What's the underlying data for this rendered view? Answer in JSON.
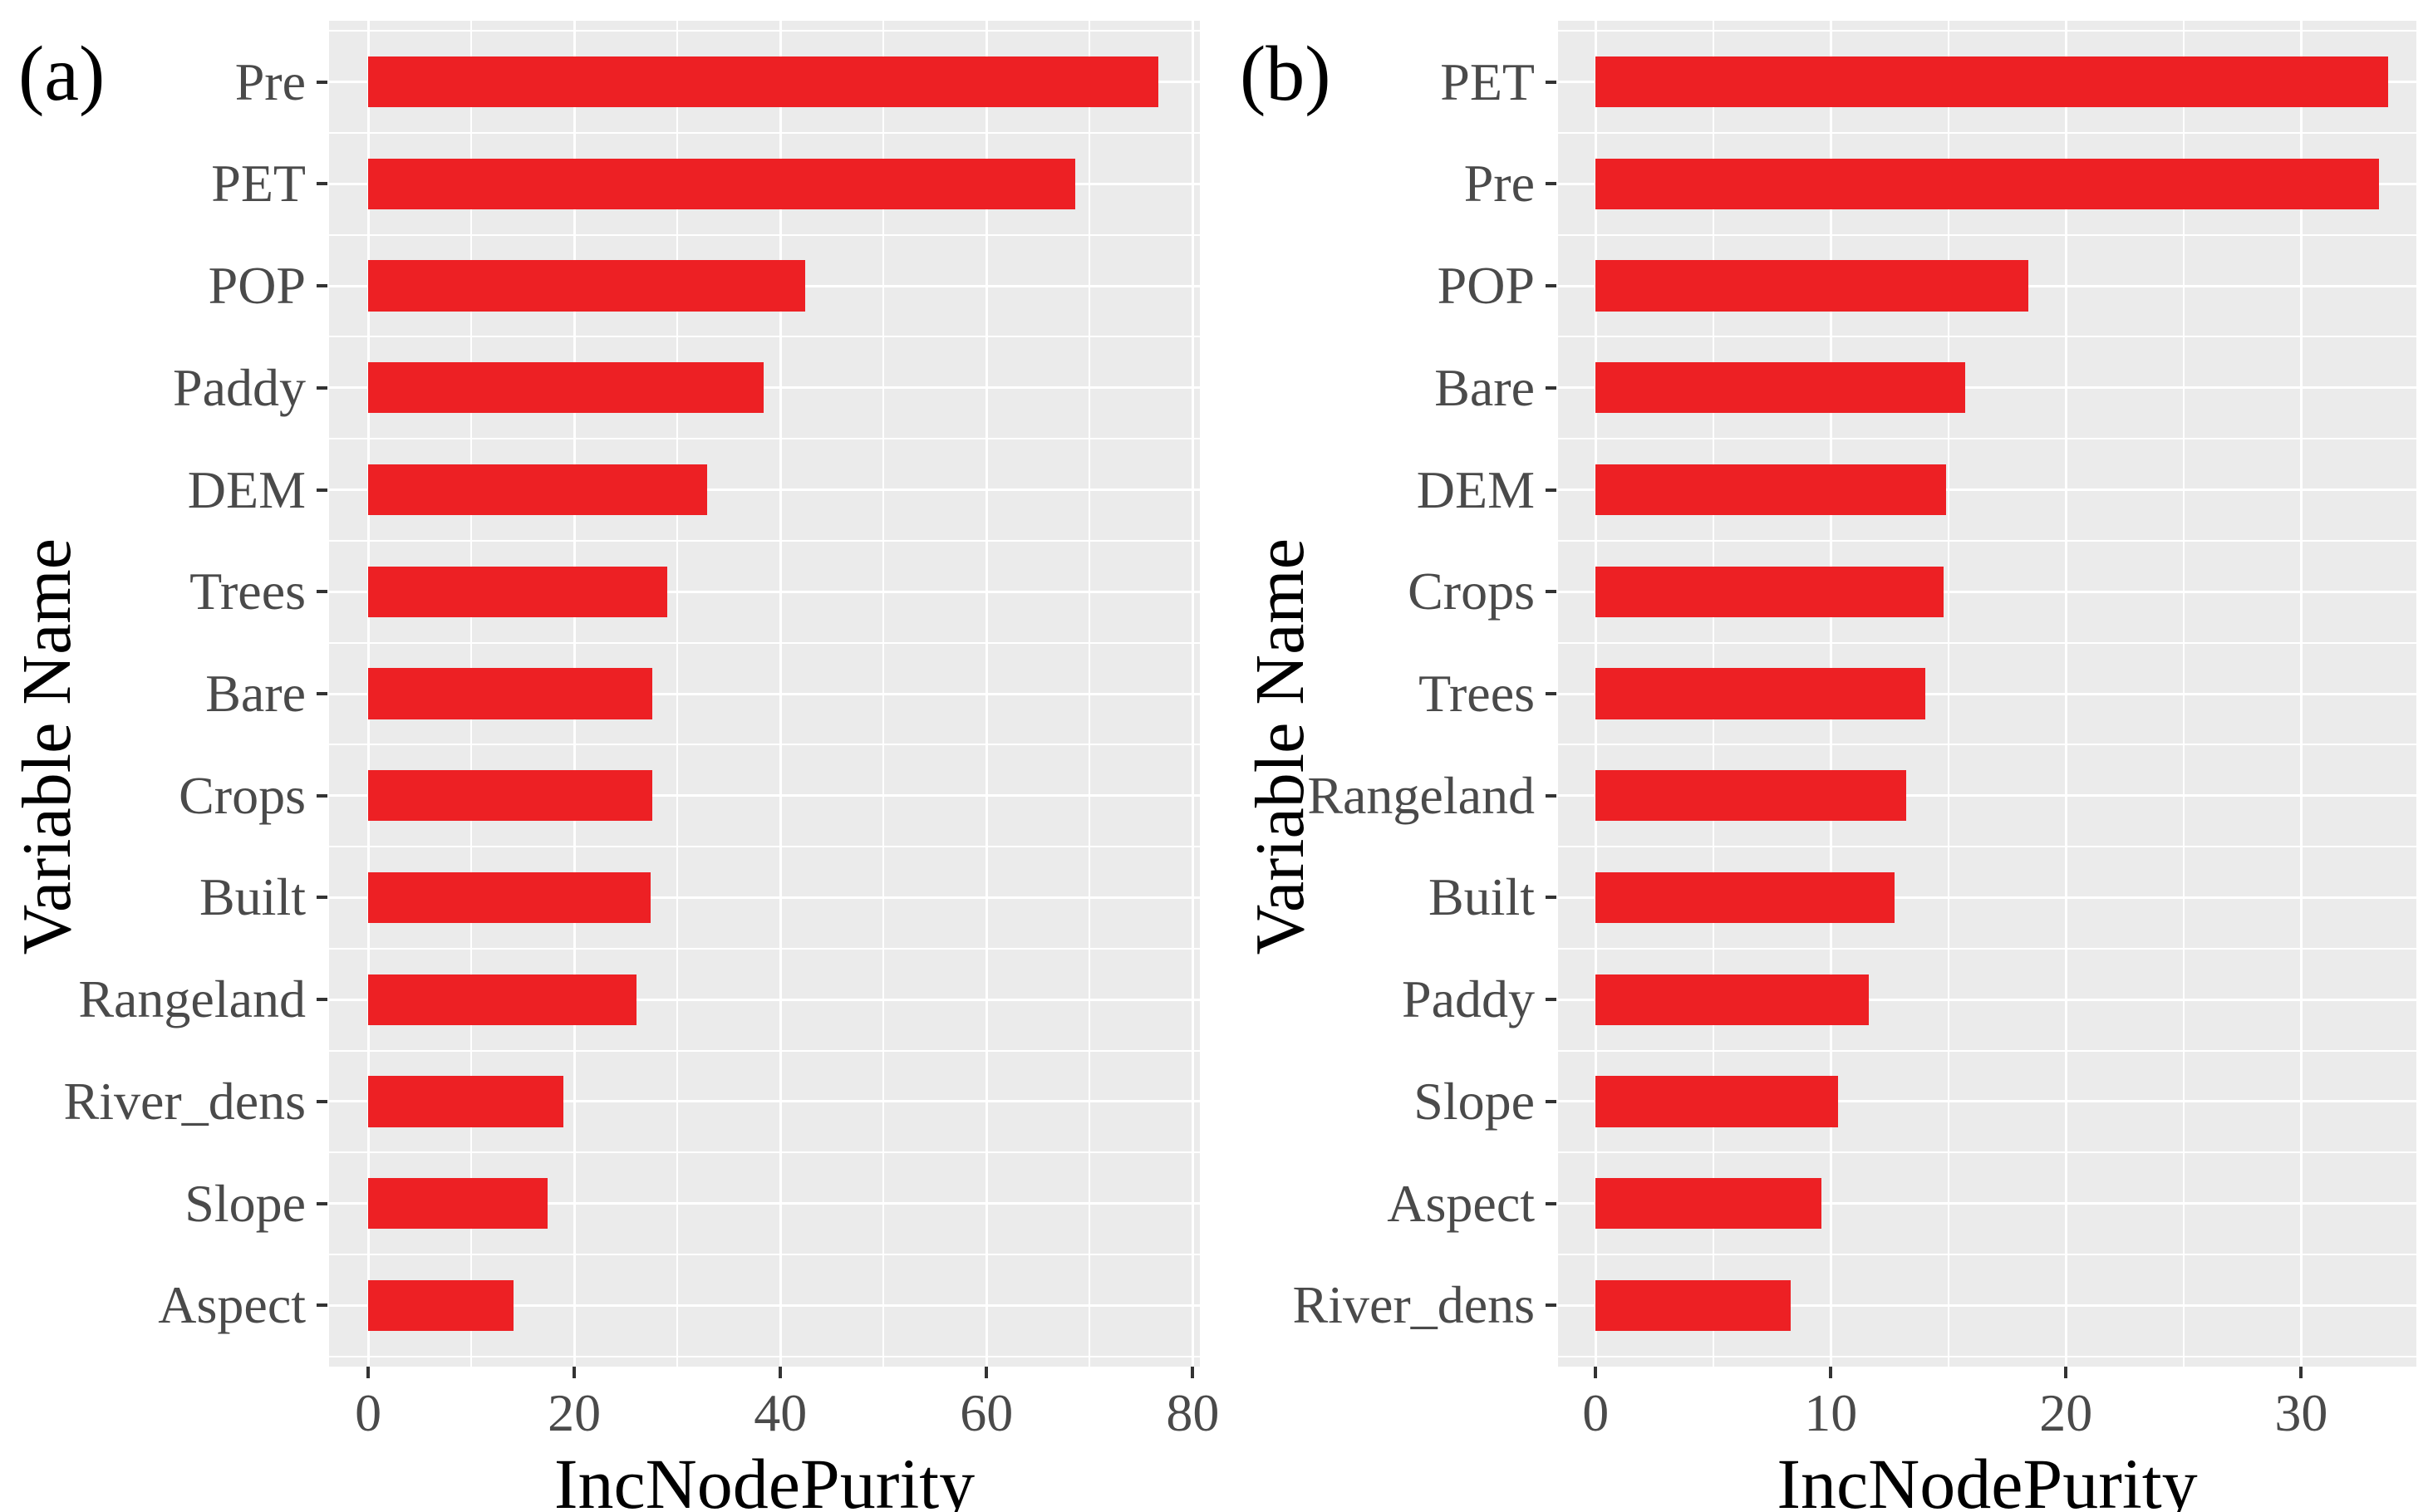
{
  "figure": {
    "panel_labels": {
      "a": "(a)",
      "b": "(b)"
    },
    "colors": {
      "bar": "#ED2024",
      "panel_background": "#EBEBEB",
      "gridline": "#FFFFFF",
      "axis_text": "#4a4a4a",
      "tick_mark": "#333333",
      "title_text": "#000000"
    }
  },
  "chart_data": [
    {
      "type": "bar",
      "orientation": "horizontal",
      "panel_label": "(a)",
      "xlabel": "IncNodePurity",
      "ylabel": "Variable Name",
      "categories": [
        "Pre",
        "PET",
        "POP",
        "Paddy",
        "DEM",
        "Trees",
        "Bare",
        "Crops",
        "Built",
        "Rangeland",
        "River_dens",
        "Slope",
        "Aspect"
      ],
      "values": [
        76.7,
        68.6,
        42.4,
        38.4,
        32.9,
        29.0,
        27.6,
        27.6,
        27.4,
        26.0,
        18.9,
        17.4,
        14.1
      ],
      "xticks": [
        0,
        20,
        40,
        60,
        80
      ],
      "xminor": [
        10,
        30,
        50,
        70
      ],
      "xlim": [
        -3.8,
        80.7
      ],
      "grid": true,
      "legend": false,
      "bar_color": "#ED2024"
    },
    {
      "type": "bar",
      "orientation": "horizontal",
      "panel_label": "(b)",
      "xlabel": "IncNodePurity",
      "ylabel": "Variable Name",
      "categories": [
        "PET",
        "Pre",
        "POP",
        "Bare",
        "DEM",
        "Crops",
        "Trees",
        "Rangeland",
        "Built",
        "Paddy",
        "Slope",
        "Aspect",
        "River_dens"
      ],
      "values": [
        33.7,
        33.3,
        18.4,
        15.7,
        14.9,
        14.8,
        14.0,
        13.2,
        12.7,
        11.6,
        10.3,
        9.6,
        8.3
      ],
      "xticks": [
        0,
        10,
        20,
        30
      ],
      "xminor": [
        5,
        15,
        25
      ],
      "xlim": [
        -1.6,
        34.9
      ],
      "grid": true,
      "legend": false,
      "bar_color": "#ED2024"
    }
  ]
}
